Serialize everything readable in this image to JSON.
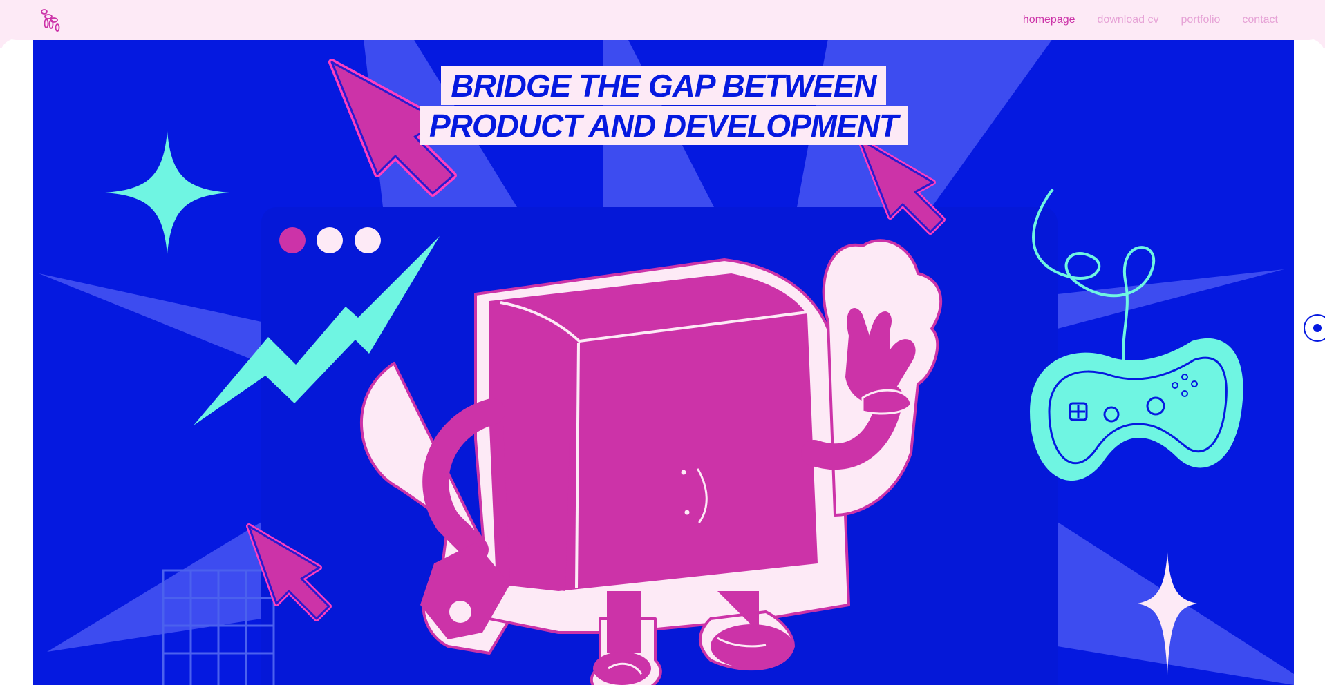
{
  "nav": {
    "logo": "balloon-dog-logo",
    "items": [
      {
        "label": "homepage",
        "active": true
      },
      {
        "label": "download cv",
        "active": false
      },
      {
        "label": "portfolio",
        "active": false
      },
      {
        "label": "contact",
        "active": false
      }
    ]
  },
  "hero": {
    "headline_line1": "BRIDGE THE GAP BETWEEN",
    "headline_line2": "PRODUCT AND DEVELOPMENT",
    "face_text": ":)"
  },
  "colors": {
    "brand_blue": "#0519e0",
    "pink": "#cc33a8",
    "light_pink": "#fdeaf6",
    "mint": "#6ff5e2"
  },
  "icons": [
    "cursor-arrow-icon",
    "sparkle-icon",
    "lightning-icon",
    "game-controller-icon",
    "box-character",
    "grid-pattern",
    "scroll-indicator-icon"
  ]
}
